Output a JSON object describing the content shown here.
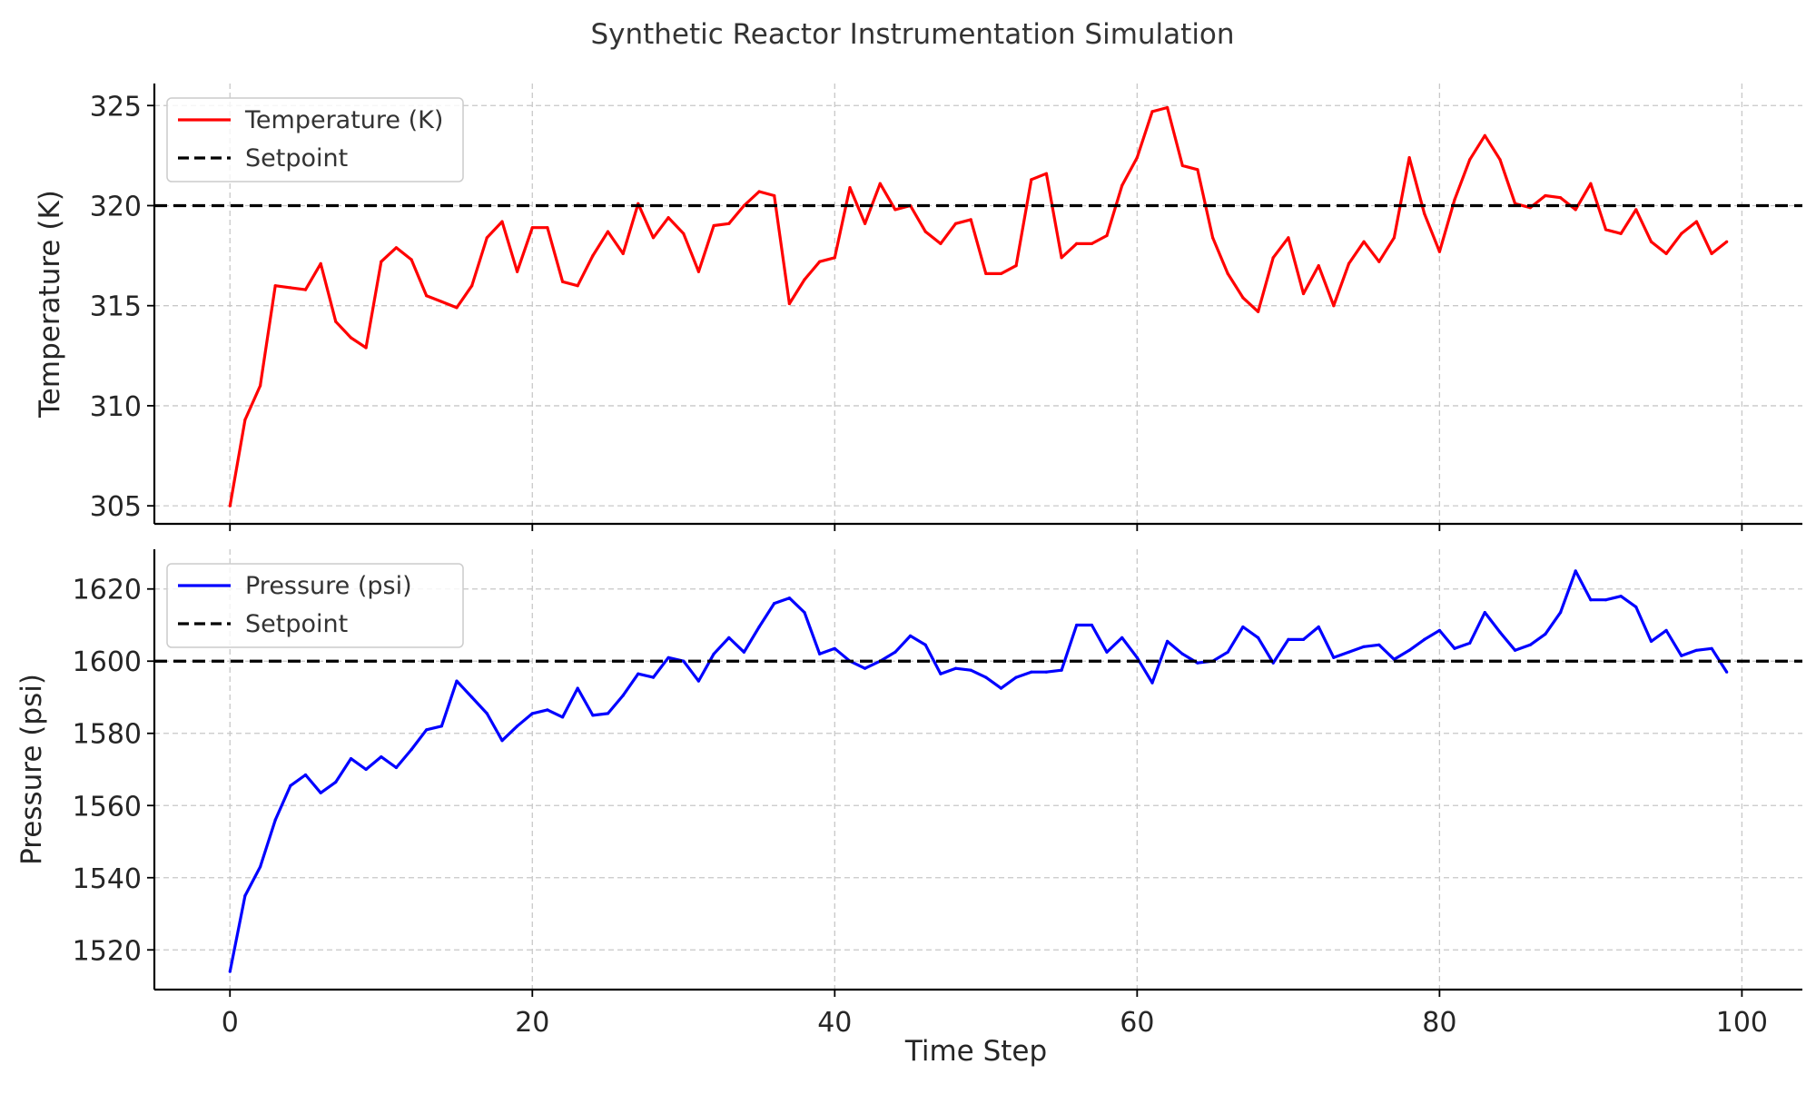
{
  "chart_data": {
    "title": "Synthetic Reactor Instrumentation Simulation",
    "xlabel": "Time Step",
    "colors": {
      "temperature": "#ff0000",
      "pressure": "#0000ff",
      "setpoint": "#000000"
    },
    "panels": [
      {
        "id": "temperature",
        "type": "line",
        "ylabel": "Temperature (K)",
        "xlim": [
          -5,
          104
        ],
        "ylim": [
          304.1,
          326.1
        ],
        "xticks": [
          0,
          20,
          40,
          60,
          80,
          100
        ],
        "yticks": [
          305,
          310,
          315,
          320,
          325
        ],
        "legend": "top-left",
        "grid": true,
        "series": [
          {
            "name": "Temperature (K)",
            "color": "#ff0000",
            "style": "solid",
            "values": [
              305.0,
              309.3,
              311.0,
              316.0,
              315.9,
              315.8,
              317.1,
              314.2,
              313.4,
              312.9,
              317.2,
              317.9,
              317.3,
              315.5,
              315.2,
              314.9,
              316.0,
              318.4,
              319.2,
              316.7,
              318.9,
              318.9,
              316.2,
              316.0,
              317.5,
              318.7,
              317.6,
              320.1,
              318.4,
              319.4,
              318.6,
              316.7,
              319.0,
              319.1,
              320.0,
              320.7,
              320.5,
              315.1,
              316.3,
              317.2,
              317.4,
              320.9,
              319.1,
              321.1,
              319.8,
              320.0,
              318.7,
              318.1,
              319.1,
              319.3,
              316.6,
              316.6,
              317.0,
              321.3,
              321.6,
              317.4,
              318.1,
              318.1,
              318.5,
              321.0,
              322.4,
              324.7,
              324.9,
              322.0,
              321.8,
              318.4,
              316.6,
              315.4,
              314.7,
              317.4,
              318.4,
              315.6,
              317.0,
              315.0,
              317.1,
              318.2,
              317.2,
              318.4,
              322.4,
              319.6,
              317.7,
              320.3,
              322.3,
              323.5,
              322.3,
              320.1,
              319.9,
              320.5,
              320.4,
              319.8,
              321.1,
              318.8,
              318.6,
              319.8,
              318.2,
              317.6,
              318.6,
              319.2,
              317.6,
              318.2
            ]
          },
          {
            "name": "Setpoint",
            "color": "#000000",
            "style": "dashed",
            "value": 320
          }
        ]
      },
      {
        "id": "pressure",
        "type": "line",
        "ylabel": "Pressure (psi)",
        "xlim": [
          -5,
          104
        ],
        "ylim": [
          1509,
          1631
        ],
        "xticks": [
          0,
          20,
          40,
          60,
          80,
          100
        ],
        "yticks": [
          1520,
          1540,
          1560,
          1580,
          1600,
          1620
        ],
        "legend": "top-left",
        "grid": true,
        "series": [
          {
            "name": "Pressure (psi)",
            "color": "#0000ff",
            "style": "solid",
            "values": [
              1514.0,
              1535.0,
              1543.0,
              1556.0,
              1565.5,
              1568.5,
              1563.5,
              1566.5,
              1573.0,
              1570.0,
              1573.5,
              1570.5,
              1575.5,
              1581.0,
              1582.0,
              1594.5,
              1590.0,
              1585.5,
              1578.0,
              1582.0,
              1585.5,
              1586.5,
              1584.5,
              1592.5,
              1585.0,
              1585.5,
              1590.5,
              1596.5,
              1595.5,
              1601.0,
              1600.0,
              1594.5,
              1602.0,
              1606.5,
              1602.5,
              1609.5,
              1616.0,
              1617.5,
              1613.5,
              1602.0,
              1603.5,
              1600.0,
              1598.0,
              1600.0,
              1602.5,
              1607.0,
              1604.5,
              1596.5,
              1598.0,
              1597.5,
              1595.5,
              1592.5,
              1595.5,
              1597.0,
              1597.0,
              1597.5,
              1610.0,
              1610.0,
              1602.5,
              1606.5,
              1601.0,
              1594.0,
              1605.5,
              1602.0,
              1599.5,
              1600.0,
              1602.5,
              1609.5,
              1606.5,
              1599.5,
              1606.0,
              1606.0,
              1609.5,
              1601.0,
              1602.5,
              1604.0,
              1604.5,
              1600.5,
              1603.0,
              1606.0,
              1608.5,
              1603.5,
              1605.0,
              1613.5,
              1608.0,
              1603.0,
              1604.5,
              1607.5,
              1613.5,
              1625.0,
              1617.0,
              1617.0,
              1618.0,
              1615.0,
              1605.5,
              1608.5,
              1601.5,
              1603.0,
              1603.5,
              1597.0
            ]
          },
          {
            "name": "Setpoint",
            "color": "#000000",
            "style": "dashed",
            "value": 1600
          }
        ]
      }
    ]
  }
}
